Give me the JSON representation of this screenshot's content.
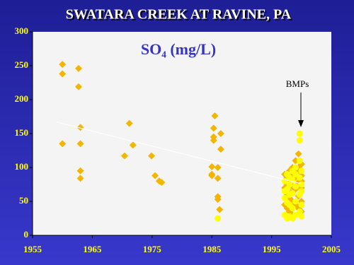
{
  "chart_data": {
    "type": "scatter",
    "title": "SWATARA CREEK AT RAVINE, PA",
    "subtitle": "SO₄ (mg/L)",
    "annotation": "BMPs",
    "xlim": [
      1955,
      2005
    ],
    "xticks": [
      1955,
      1965,
      1975,
      1985,
      1995,
      2005
    ],
    "ylim": [
      0,
      300
    ],
    "yticks": [
      0,
      50,
      100,
      150,
      200,
      250,
      300
    ],
    "series": [
      {
        "marker": "diamond",
        "color": "#f2b600",
        "x": [
          1960,
          1960,
          1960,
          1962.7,
          1962.7,
          1963,
          1963,
          1963,
          1963,
          1970.4,
          1971.2,
          1971.8,
          1974.9,
          1975.5,
          1976.2,
          1976.6,
          1985.5,
          1985.3,
          1985.3,
          1985.3,
          1986.5,
          1986.5,
          1985,
          1985,
          1985,
          1986,
          1986,
          1986,
          1986,
          1986.3,
          1997.2,
          1997.2,
          1997.2,
          1997.6,
          1997.6,
          1997.6,
          1997.6,
          1998,
          1998,
          1998,
          1998,
          1998,
          1998.5,
          1998.5,
          1998.5,
          1998.5,
          1998.5,
          1999,
          1999,
          1999,
          1999,
          1999,
          1999.5,
          1999.5,
          1999.5,
          1999.5,
          1999.5,
          1999.5,
          2000,
          2000,
          2000,
          2000,
          2000,
          2000
        ],
        "values": [
          252,
          238,
          135,
          246,
          219,
          159,
          135,
          95,
          84,
          117,
          165,
          133,
          117,
          88,
          80,
          78,
          176,
          158,
          145,
          140,
          150,
          127,
          101,
          90,
          88,
          100,
          84,
          57,
          53,
          38,
          45,
          70,
          90,
          85,
          60,
          40,
          75,
          95,
          80,
          55,
          35,
          65,
          100,
          88,
          72,
          50,
          30,
          110,
          92,
          68,
          45,
          85,
          120,
          100,
          78,
          58,
          40,
          95,
          105,
          88,
          70,
          50,
          35,
          80
        ]
      },
      {
        "marker": "circle",
        "color": "#ffff00",
        "x": [
          1986,
          1997.2,
          1997.2,
          1997.2,
          1997.2,
          1997.6,
          1997.6,
          1997.6,
          1997.6,
          1998,
          1998,
          1998,
          1998,
          1998,
          1998.5,
          1998.5,
          1998.5,
          1998.5,
          1998.5,
          1999,
          1999,
          1999,
          1999,
          1999,
          1999.7,
          1999.7,
          1999.7,
          1999.7,
          1999.7,
          1999.7,
          2000,
          2000,
          2000,
          2000,
          2000
        ],
        "values": [
          25,
          30,
          55,
          80,
          65,
          25,
          48,
          68,
          90,
          28,
          45,
          60,
          75,
          85,
          25,
          40,
          62,
          82,
          95,
          30,
          50,
          72,
          90,
          100,
          150,
          140,
          35,
          60,
          85,
          110,
          28,
          45,
          65,
          75,
          95
        ]
      }
    ],
    "trend": {
      "color": "#ffffff",
      "x": [
        1959,
        2000
      ],
      "values": [
        167,
        76
      ]
    }
  }
}
